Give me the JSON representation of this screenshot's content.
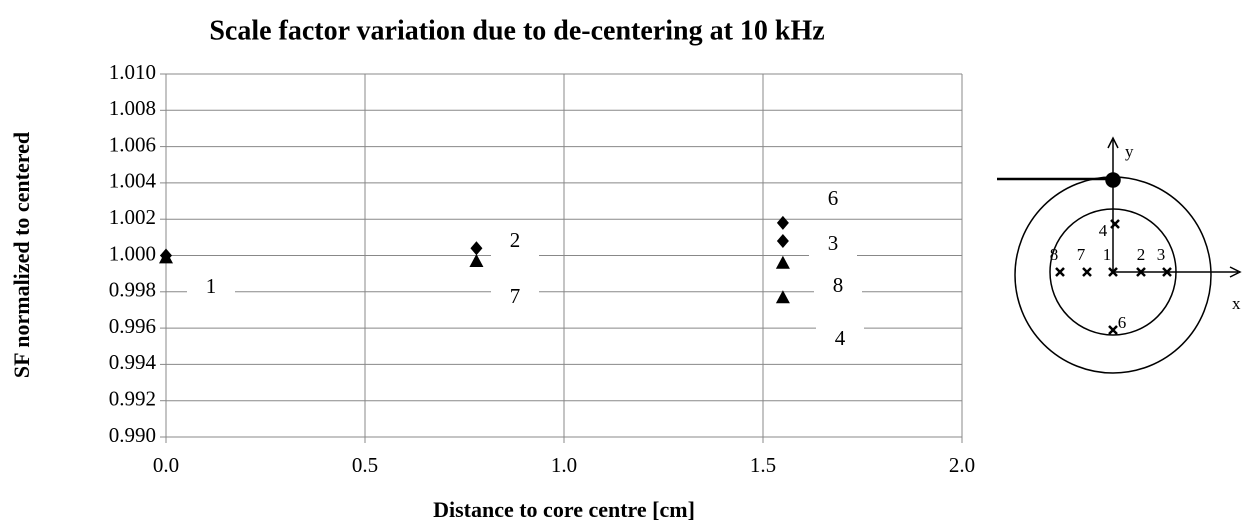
{
  "chart_data": {
    "type": "scatter",
    "title": "Scale factor variation due to de-centering at 10 kHz",
    "xlabel": "Distance to core centre [cm]",
    "ylabel": "SF normalized to centered",
    "xlim": [
      0,
      2
    ],
    "ylim": [
      0.99,
      1.01
    ],
    "xticks": [
      {
        "value": 0,
        "label": "0.0"
      },
      {
        "value": 0.5,
        "label": "0.5"
      },
      {
        "value": 1,
        "label": "1.0"
      },
      {
        "value": 1.5,
        "label": "1.5"
      },
      {
        "value": 2,
        "label": "2.0"
      }
    ],
    "yticks": [
      {
        "value": 0.99,
        "label": "0.990"
      },
      {
        "value": 0.992,
        "label": "0.992"
      },
      {
        "value": 0.994,
        "label": "0.994"
      },
      {
        "value": 0.996,
        "label": "0.996"
      },
      {
        "value": 0.998,
        "label": "0.998"
      },
      {
        "value": 1.0,
        "label": "1.000"
      },
      {
        "value": 1.002,
        "label": "1.002"
      },
      {
        "value": 1.004,
        "label": "1.004"
      },
      {
        "value": 1.006,
        "label": "1.006"
      },
      {
        "value": 1.008,
        "label": "1.008"
      },
      {
        "value": 1.01,
        "label": "1.010"
      }
    ],
    "grid": true,
    "series": [
      {
        "marker": "diamond",
        "color": "#000000",
        "x": [
          0,
          0.78,
          1.55,
          1.55
        ],
        "values": [
          1.0,
          1.0004,
          1.0018,
          1.0008
        ]
      },
      {
        "marker": "triangle",
        "color": "#000000",
        "x": [
          0,
          0.78,
          1.55,
          1.55
        ],
        "values": [
          0.9999,
          0.9997,
          0.9996,
          0.9977
        ]
      }
    ],
    "annotations": [
      "1",
      "2",
      "7",
      "6",
      "3",
      "8",
      "4"
    ]
  },
  "diagram": {
    "axis_labels": [
      "x",
      "y"
    ],
    "points": [
      "8",
      "7",
      "1",
      "2",
      "3",
      "4",
      "6"
    ]
  }
}
